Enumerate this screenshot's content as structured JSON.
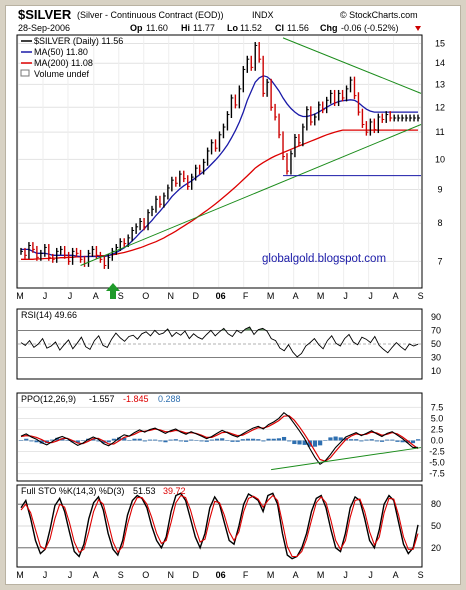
{
  "header": {
    "symbol": "$SILVER",
    "description": "(Silver - Continuous Contract (EOD))",
    "exchange": "INDX",
    "credit": "© StockCharts.com",
    "date": "28-Sep-2006",
    "open_label": "Op",
    "open": "11.60",
    "high_label": "Hi",
    "high": "11.77",
    "low_label": "Lo",
    "low": "11.52",
    "close_label": "Cl",
    "close": "11.56",
    "change_label": "Chg",
    "change": "-0.06 (-0.52%)"
  },
  "colors": {
    "price": "#000000",
    "up_bar": "#000000",
    "down_bar": "#cc0000",
    "ma50": "#1a1aa8",
    "ma200": "#dd0000",
    "trendline": "#1b8c1b",
    "support": "#1a1aa8",
    "rsi_fill": "#5f8f5f",
    "hist": "#2e6fb0",
    "arrow": "#1f9a2a"
  },
  "chart_data": [
    {
      "type": "line",
      "panel": "price",
      "legend": [
        "$SILVER (Daily) 11.56",
        "MA(50) 11.80",
        "MA(200) 11.08",
        "Volume undef"
      ],
      "watermark": "globalgold.blogspot.com",
      "x_tick_labels": [
        "M",
        "J",
        "J",
        "A",
        "S",
        "O",
        "N",
        "D",
        "06",
        "F",
        "M",
        "A",
        "M",
        "J",
        "J",
        "A",
        "S"
      ],
      "y_tick_labels": [
        "7",
        "8",
        "9",
        "10",
        "11",
        "12",
        "13",
        "14",
        "15"
      ],
      "ylim": [
        6.4,
        15.4
      ],
      "log_scale": true,
      "series": [
        {
          "name": "$SILVER (Daily)",
          "x": [
            0,
            1,
            2,
            3,
            4,
            5,
            6,
            7,
            8,
            9,
            10,
            11,
            12,
            13,
            14,
            15,
            16,
            17,
            18,
            19,
            20,
            21,
            22,
            23,
            24,
            25,
            26,
            27,
            28,
            29,
            30,
            31,
            32,
            33,
            34,
            35,
            36,
            37,
            38,
            39,
            40,
            41,
            42,
            43,
            44,
            45,
            46,
            47,
            48,
            49,
            50,
            51,
            52,
            53,
            54,
            55,
            56,
            57,
            58,
            59,
            60,
            61,
            62,
            63,
            64,
            65,
            66,
            67,
            68,
            69,
            70,
            71,
            72,
            73,
            74,
            75,
            76,
            77,
            78,
            79,
            80,
            81,
            82,
            83,
            84,
            85,
            86,
            87,
            88,
            89,
            90,
            91,
            92,
            93,
            94,
            95,
            96,
            97,
            98,
            99,
            100
          ],
          "values": [
            7.25,
            7.15,
            7.4,
            7.3,
            7.1,
            7.2,
            7.35,
            7.1,
            7.05,
            7.25,
            7.3,
            7.15,
            7.0,
            7.25,
            7.2,
            7.05,
            6.95,
            7.2,
            7.3,
            7.15,
            7.05,
            6.9,
            7.1,
            7.25,
            7.35,
            7.5,
            7.45,
            7.6,
            7.8,
            7.9,
            8.05,
            7.9,
            8.3,
            8.4,
            8.7,
            8.55,
            8.8,
            9.05,
            9.3,
            9.2,
            9.5,
            9.35,
            9.1,
            9.4,
            9.7,
            9.6,
            9.9,
            10.3,
            10.6,
            10.4,
            10.9,
            11.2,
            11.7,
            12.4,
            12.1,
            12.8,
            13.7,
            14.2,
            13.8,
            14.9,
            14.2,
            12.6,
            13.1,
            12.0,
            11.6,
            10.9,
            10.1,
            9.6,
            10.2,
            10.8,
            10.6,
            11.2,
            11.9,
            11.4,
            11.6,
            12.1,
            11.9,
            12.3,
            12.6,
            12.2,
            12.6,
            12.4,
            12.8,
            13.2,
            12.5,
            11.8,
            11.3,
            11.0,
            11.4,
            11.1,
            11.6,
            11.5,
            11.7,
            11.56,
            11.56,
            11.56,
            11.56,
            11.56,
            11.56,
            11.56,
            11.56
          ]
        },
        {
          "name": "MA(50)",
          "values": [
            7.3,
            7.3,
            7.3,
            7.25,
            7.2,
            7.2,
            7.2,
            7.18,
            7.15,
            7.15,
            7.15,
            7.15,
            7.15,
            7.15,
            7.13,
            7.12,
            7.12,
            7.12,
            7.12,
            7.12,
            7.12,
            7.12,
            7.14,
            7.18,
            7.22,
            7.28,
            7.34,
            7.42,
            7.52,
            7.62,
            7.74,
            7.84,
            7.96,
            8.08,
            8.22,
            8.34,
            8.48,
            8.62,
            8.78,
            8.9,
            9.02,
            9.12,
            9.2,
            9.28,
            9.38,
            9.48,
            9.58,
            9.7,
            9.84,
            9.98,
            10.14,
            10.32,
            10.52,
            10.78,
            11.06,
            11.4,
            11.8,
            12.3,
            12.7,
            13.1,
            13.3,
            13.4,
            13.35,
            13.2,
            12.95,
            12.7,
            12.4,
            12.15,
            11.95,
            11.8,
            11.68,
            11.62,
            11.62,
            11.66,
            11.72,
            11.8,
            11.9,
            12.0,
            12.1,
            12.18,
            12.24,
            12.28,
            12.3,
            12.32,
            12.3,
            12.2,
            12.05,
            11.92,
            11.84,
            11.8,
            11.8,
            11.8,
            11.8,
            11.8,
            11.8,
            11.8,
            11.8,
            11.8,
            11.8,
            11.8,
            11.8
          ]
        },
        {
          "name": "MA(200)",
          "values": [
            7.05,
            7.05,
            7.05,
            7.05,
            7.06,
            7.06,
            7.07,
            7.07,
            7.08,
            7.08,
            7.09,
            7.09,
            7.1,
            7.1,
            7.11,
            7.11,
            7.12,
            7.12,
            7.13,
            7.13,
            7.14,
            7.14,
            7.15,
            7.16,
            7.18,
            7.2,
            7.22,
            7.25,
            7.28,
            7.31,
            7.34,
            7.38,
            7.42,
            7.46,
            7.5,
            7.55,
            7.6,
            7.66,
            7.72,
            7.78,
            7.85,
            7.92,
            7.99,
            8.06,
            8.14,
            8.22,
            8.3,
            8.38,
            8.47,
            8.56,
            8.66,
            8.76,
            8.86,
            8.97,
            9.08,
            9.2,
            9.32,
            9.44,
            9.57,
            9.7,
            9.8,
            9.89,
            9.97,
            10.05,
            10.12,
            10.18,
            10.24,
            10.3,
            10.36,
            10.42,
            10.48,
            10.54,
            10.6,
            10.66,
            10.72,
            10.78,
            10.84,
            10.9,
            10.95,
            11.0,
            11.04,
            11.08,
            11.08,
            11.08,
            11.08,
            11.08,
            11.08,
            11.08,
            11.08,
            11.08,
            11.08,
            11.08,
            11.08,
            11.08,
            11.08,
            11.08,
            11.08,
            11.08,
            11.08,
            11.08,
            11.08
          ]
        }
      ],
      "trendlines": [
        {
          "from": [
            15,
            6.9
          ],
          "to": [
            100,
            11.3
          ]
        },
        {
          "from": [
            66,
            15.3
          ],
          "to": [
            100,
            12.6
          ]
        },
        {
          "from": [
            66,
            9.45
          ],
          "to": [
            93,
            9.45
          ]
        }
      ]
    },
    {
      "type": "line",
      "panel": "rsi",
      "title": "RSI(14) 49.66",
      "y_tick_labels": [
        "90",
        "70",
        "50",
        "30",
        "10"
      ],
      "ylim": [
        0,
        100
      ],
      "levels": [
        70,
        50,
        30
      ],
      "values": [
        52,
        48,
        55,
        45,
        50,
        58,
        44,
        47,
        53,
        41,
        49,
        56,
        43,
        51,
        60,
        46,
        42,
        55,
        62,
        48,
        45,
        57,
        66,
        59,
        54,
        61,
        63,
        57,
        65,
        68,
        62,
        70,
        64,
        66,
        72,
        61,
        67,
        63,
        69,
        58,
        65,
        60,
        57,
        64,
        70,
        62,
        68,
        73,
        65,
        61,
        70,
        66,
        72,
        75,
        64,
        71,
        73,
        69,
        58,
        55,
        44,
        40,
        49,
        38,
        31,
        36,
        47,
        52,
        58,
        49,
        43,
        55,
        62,
        51,
        47,
        58,
        64,
        53,
        49,
        60,
        57,
        52,
        61,
        48,
        42,
        37,
        45,
        52,
        46,
        41,
        50,
        47,
        49.66
      ]
    },
    {
      "type": "line",
      "panel": "ppo",
      "title": "PPO(12,26,9)",
      "legend": [
        "-1.557",
        "-1.845",
        "0.288"
      ],
      "y_tick_labels": [
        "7.5",
        "5.0",
        "2.5",
        "0.0",
        "-2.5",
        "-5.0",
        "-7.5"
      ],
      "ylim": [
        -8.5,
        8.5
      ],
      "series": [
        {
          "name": "PPO",
          "values": [
            1.0,
            1.5,
            0.8,
            0.3,
            -0.5,
            -1.0,
            -0.3,
            0.5,
            0.9,
            0.4,
            -0.4,
            -1.1,
            -0.6,
            0.2,
            0.8,
            0.3,
            -0.7,
            -1.2,
            -0.4,
            0.6,
            1.3,
            1.0,
            1.8,
            2.4,
            1.9,
            2.5,
            2.8,
            2.2,
            1.6,
            2.2,
            2.6,
            1.9,
            1.4,
            2.0,
            1.5,
            1.0,
            0.4,
            0.9,
            1.6,
            2.3,
            1.8,
            1.2,
            0.8,
            1.5,
            2.2,
            2.8,
            3.2,
            2.6,
            3.6,
            4.2,
            5.0,
            6.3,
            5.4,
            3.8,
            2.2,
            0.4,
            -1.8,
            -3.8,
            -5.4,
            -4.6,
            -3.2,
            -1.6,
            -0.4,
            0.8,
            1.3,
            1.8,
            1.1,
            1.6,
            2.2,
            1.5,
            0.9,
            1.6,
            2.0,
            1.2,
            0.4,
            -0.6,
            -1.557,
            -1.557
          ]
        },
        {
          "name": "Signal",
          "values": [
            0.9,
            1.1,
            1.0,
            0.7,
            0.2,
            -0.4,
            -0.5,
            -0.1,
            0.4,
            0.5,
            0.0,
            -0.6,
            -0.7,
            -0.2,
            0.4,
            0.5,
            -0.1,
            -0.8,
            -0.8,
            -0.1,
            0.7,
            1.0,
            1.4,
            2.0,
            2.1,
            2.3,
            2.6,
            2.4,
            2.0,
            2.0,
            2.3,
            2.1,
            1.7,
            1.8,
            1.6,
            1.2,
            0.7,
            0.7,
            1.2,
            1.8,
            1.9,
            1.5,
            1.1,
            1.2,
            1.8,
            2.4,
            2.9,
            2.8,
            3.2,
            3.8,
            4.5,
            5.5,
            5.6,
            4.6,
            3.1,
            1.4,
            -0.4,
            -2.4,
            -4.3,
            -4.7,
            -3.9,
            -2.5,
            -1.1,
            0.2,
            1.0,
            1.5,
            1.3,
            1.4,
            1.9,
            1.7,
            1.2,
            1.4,
            1.8,
            1.5,
            0.8,
            -0.1,
            -1.0,
            -1.845
          ]
        },
        {
          "name": "Histogram",
          "values": [
            0.1,
            0.4,
            -0.2,
            -0.4,
            -0.7,
            -0.6,
            0.2,
            0.6,
            0.5,
            -0.1,
            -0.4,
            -0.5,
            0.1,
            0.4,
            0.4,
            -0.2,
            -0.6,
            -0.4,
            0.4,
            0.7,
            0.6,
            0.0,
            0.4,
            0.4,
            -0.2,
            0.2,
            0.2,
            -0.2,
            -0.4,
            0.2,
            0.3,
            -0.2,
            -0.3,
            0.2,
            -0.1,
            -0.2,
            -0.3,
            0.2,
            0.4,
            0.5,
            -0.1,
            -0.3,
            -0.3,
            0.3,
            0.4,
            0.4,
            0.3,
            -0.2,
            0.4,
            0.4,
            0.5,
            0.8,
            -0.2,
            -0.8,
            -0.9,
            -1.0,
            -1.4,
            -1.4,
            -1.1,
            0.1,
            0.7,
            0.9,
            0.7,
            0.6,
            0.3,
            0.3,
            -0.2,
            0.2,
            0.3,
            -0.2,
            -0.3,
            0.2,
            0.2,
            -0.3,
            -0.4,
            -0.5,
            -0.6,
            0.288
          ]
        }
      ],
      "trendline": {
        "from": [
          63,
          -6.6
        ],
        "to": [
          100,
          -1.6
        ]
      }
    },
    {
      "type": "line",
      "panel": "sto",
      "title": "Full STO %K(14,3) %D(3)",
      "legend": [
        "51.53",
        "39.72"
      ],
      "y_tick_labels": [
        "80",
        "50",
        "20"
      ],
      "ylim": [
        -5,
        105
      ],
      "levels": [
        80,
        20
      ],
      "series": [
        {
          "name": "%K",
          "values": [
            75,
            85,
            60,
            30,
            12,
            18,
            45,
            78,
            88,
            70,
            42,
            15,
            8,
            25,
            60,
            82,
            90,
            72,
            40,
            18,
            10,
            30,
            65,
            85,
            92,
            88,
            75,
            50,
            30,
            20,
            35,
            70,
            92,
            95,
            85,
            60,
            35,
            20,
            40,
            75,
            90,
            80,
            55,
            30,
            25,
            50,
            80,
            94,
            90,
            85,
            70,
            92,
            95,
            80,
            40,
            10,
            5,
            8,
            20,
            40,
            70,
            88,
            92,
            75,
            45,
            20,
            15,
            40,
            75,
            90,
            85,
            60,
            30,
            20,
            45,
            80,
            92,
            85,
            55,
            25,
            12,
            20,
            51.53
          ]
        },
        {
          "name": "%D",
          "values": [
            72,
            80,
            68,
            45,
            22,
            18,
            32,
            60,
            80,
            76,
            55,
            28,
            14,
            18,
            42,
            70,
            86,
            80,
            55,
            28,
            14,
            22,
            52,
            76,
            89,
            89,
            80,
            62,
            40,
            26,
            30,
            55,
            82,
            92,
            89,
            72,
            48,
            28,
            32,
            60,
            84,
            82,
            65,
            42,
            30,
            42,
            70,
            88,
            91,
            87,
            76,
            85,
            92,
            85,
            55,
            22,
            8,
            8,
            15,
            32,
            58,
            82,
            90,
            82,
            58,
            30,
            18,
            30,
            62,
            85,
            87,
            70,
            42,
            24,
            35,
            68,
            88,
            87,
            65,
            35,
            18,
            18,
            39.72
          ]
        }
      ]
    }
  ],
  "panels": {
    "rsi_label": "RSI(14) 49.66",
    "ppo_label": "PPO(12,26,9)",
    "ppo_values": [
      "-1.557",
      "-1.845",
      "0.288"
    ],
    "sto_label": "Full STO %K(14,3) %D(3)",
    "sto_values": [
      "51.53",
      "39.72"
    ]
  }
}
